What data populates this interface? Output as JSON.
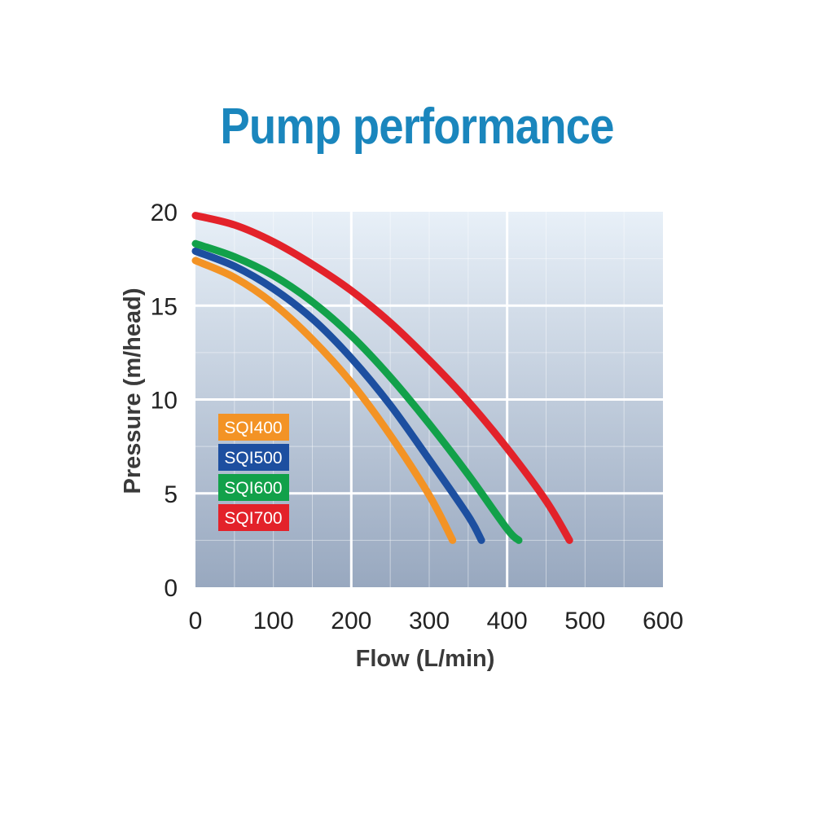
{
  "chart_data": {
    "type": "line",
    "title": "Pump performance",
    "xlabel": "Flow (L/min)",
    "ylabel": "Pressure (m/head)",
    "xlim": [
      0,
      600
    ],
    "ylim": [
      0,
      20
    ],
    "xticks": [
      "0",
      "100",
      "200",
      "300",
      "400",
      "500",
      "600"
    ],
    "yticks": [
      "0",
      "5",
      "10",
      "15",
      "20"
    ],
    "grid": true,
    "legend_position": "left",
    "series": [
      {
        "name": "SQI400",
        "color": "#f39325",
        "points": [
          [
            0,
            17.4
          ],
          [
            50,
            16.5
          ],
          [
            100,
            15.1
          ],
          [
            150,
            13.2
          ],
          [
            200,
            10.9
          ],
          [
            250,
            8.1
          ],
          [
            300,
            4.9
          ],
          [
            330,
            2.5
          ]
        ]
      },
      {
        "name": "SQI500",
        "color": "#1d4fa0",
        "points": [
          [
            0,
            17.9
          ],
          [
            50,
            17.1
          ],
          [
            100,
            15.9
          ],
          [
            150,
            14.3
          ],
          [
            200,
            12.2
          ],
          [
            250,
            9.7
          ],
          [
            300,
            6.8
          ],
          [
            350,
            3.8
          ],
          [
            367,
            2.5
          ]
        ]
      },
      {
        "name": "SQI600",
        "color": "#12a14a",
        "points": [
          [
            0,
            18.3
          ],
          [
            50,
            17.6
          ],
          [
            100,
            16.6
          ],
          [
            150,
            15.2
          ],
          [
            200,
            13.4
          ],
          [
            250,
            11.2
          ],
          [
            300,
            8.7
          ],
          [
            350,
            6.0
          ],
          [
            400,
            3.1
          ],
          [
            415,
            2.5
          ]
        ]
      },
      {
        "name": "SQI700",
        "color": "#e3222a",
        "points": [
          [
            0,
            19.8
          ],
          [
            50,
            19.3
          ],
          [
            100,
            18.4
          ],
          [
            150,
            17.2
          ],
          [
            200,
            15.8
          ],
          [
            250,
            14.1
          ],
          [
            300,
            12.1
          ],
          [
            350,
            9.9
          ],
          [
            400,
            7.4
          ],
          [
            450,
            4.6
          ],
          [
            480,
            2.5
          ]
        ]
      }
    ]
  }
}
